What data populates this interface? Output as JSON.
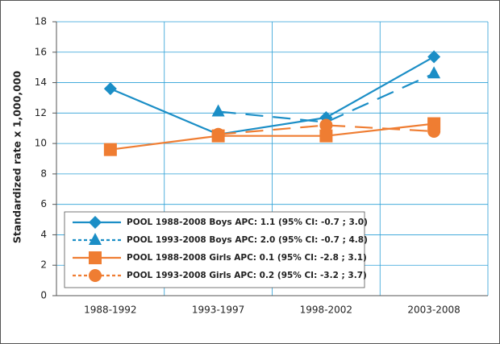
{
  "chart_data": {
    "type": "line",
    "y_label": "Standardized rate x 1,000,000",
    "categories": [
      "1988-1992",
      "1993-1997",
      "1998-2002",
      "2003-2008"
    ],
    "series": [
      {
        "name": "POOL 1988-2008 Boys APC: 1.1 (95% CI: -0.7 ; 3.0)",
        "color": "#1b8ec6",
        "marker": "diamond",
        "dashed": false,
        "values": [
          13.6,
          10.6,
          11.7,
          15.7
        ]
      },
      {
        "name": "POOL 1993-2008 Boys APC: 2.0 (95% CI: -0.7 ; 4.8)",
        "color": "#1b8ec6",
        "marker": "triangle",
        "dashed": true,
        "values": [
          null,
          12.1,
          11.4,
          14.6
        ]
      },
      {
        "name": "POOL 1988-2008 Girls APC: 0.1 (95% CI: -2.8 ; 3.1)",
        "color": "#ef7d32",
        "marker": "square",
        "dashed": false,
        "values": [
          9.6,
          10.5,
          10.5,
          11.3
        ]
      },
      {
        "name": "POOL 1993-2008 Girls APC: 0.2 (95% CI: -3.2 ; 3.7)",
        "color": "#ef7d32",
        "marker": "circle",
        "dashed": true,
        "values": [
          null,
          10.6,
          11.2,
          10.8
        ]
      }
    ],
    "ylim": [
      0,
      18
    ],
    "yticks": [
      0,
      2,
      4,
      6,
      8,
      10,
      12,
      14,
      16,
      18
    ],
    "grid": true
  }
}
